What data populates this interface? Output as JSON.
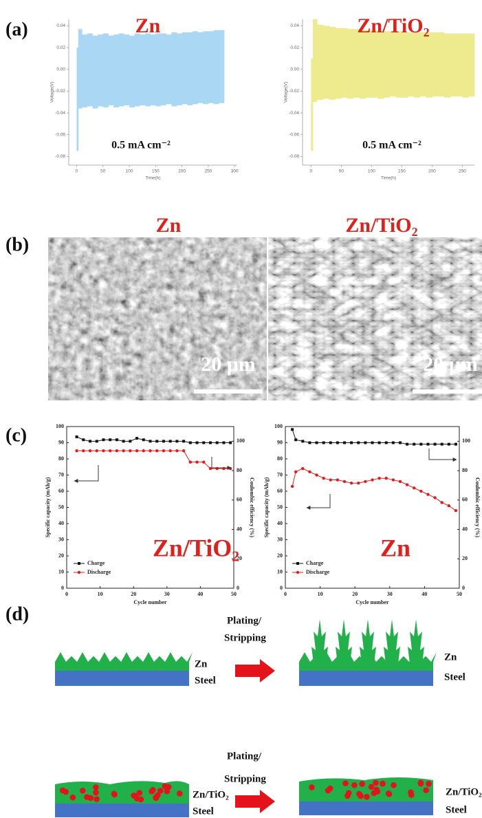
{
  "panel_labels": [
    "(a)",
    "(b)",
    "(c)",
    "(d)"
  ],
  "chart_data": [
    {
      "type": "band",
      "title": "Zn",
      "annotation": "0.5 mA cm⁻²",
      "xlabel": "Time(h)",
      "ylabel": "Voltage(V)",
      "color": "#aad8f4",
      "x": [
        0,
        3,
        10,
        20,
        30,
        40,
        50,
        60,
        70,
        80,
        90,
        100,
        110,
        120,
        130,
        140,
        150,
        160,
        170,
        180,
        190,
        200,
        210,
        220,
        230,
        240,
        250,
        260,
        270
      ],
      "upper": [
        0.02,
        0.037,
        0.032,
        0.033,
        0.031,
        0.032,
        0.033,
        0.031,
        0.032,
        0.033,
        0.032,
        0.031,
        0.033,
        0.032,
        0.033,
        0.032,
        0.033,
        0.033,
        0.032,
        0.034,
        0.033,
        0.034,
        0.034,
        0.035,
        0.034,
        0.035,
        0.035,
        0.036,
        0.036
      ],
      "lower": [
        -0.075,
        -0.036,
        -0.035,
        -0.034,
        -0.036,
        -0.034,
        -0.035,
        -0.033,
        -0.035,
        -0.034,
        -0.033,
        -0.035,
        -0.034,
        -0.033,
        -0.034,
        -0.033,
        -0.034,
        -0.033,
        -0.032,
        -0.034,
        -0.033,
        -0.032,
        -0.033,
        -0.032,
        -0.031,
        -0.032,
        -0.031,
        -0.032,
        -0.031
      ],
      "xlim": [
        -15,
        305
      ],
      "xticks": [
        0,
        50,
        100,
        150,
        200,
        250,
        300
      ],
      "ylim": [
        -0.088,
        0.046
      ],
      "yticks": [
        0.04,
        0.02,
        {
          "value": 0,
          "label": "0.00"
        },
        -0.02,
        -0.04,
        -0.06,
        -0.08
      ]
    },
    {
      "type": "band",
      "title": "Zn/TiO₂",
      "annotation": "0.5 mA cm⁻²",
      "xlabel": "Time(h)",
      "ylabel": "Voltage(V)",
      "color": "#eeea8e",
      "x": [
        0,
        3,
        10,
        20,
        30,
        40,
        50,
        60,
        70,
        80,
        90,
        100,
        110,
        120,
        130,
        140,
        150,
        160,
        170,
        180,
        190,
        200,
        210,
        220,
        230,
        240,
        250,
        260
      ],
      "upper": [
        0.01,
        0.046,
        0.041,
        0.04,
        0.039,
        0.038,
        0.038,
        0.037,
        0.037,
        0.036,
        0.036,
        0.036,
        0.035,
        0.035,
        0.035,
        0.035,
        0.034,
        0.034,
        0.034,
        0.034,
        0.034,
        0.034,
        0.034,
        0.033,
        0.033,
        0.033,
        0.033,
        0.033
      ],
      "lower": [
        -0.075,
        -0.03,
        -0.028,
        -0.027,
        -0.028,
        -0.027,
        -0.026,
        -0.027,
        -0.026,
        -0.027,
        -0.026,
        -0.026,
        -0.027,
        -0.026,
        -0.025,
        -0.026,
        -0.026,
        -0.025,
        -0.026,
        -0.025,
        -0.026,
        -0.025,
        -0.025,
        -0.026,
        -0.025,
        -0.025,
        -0.026,
        -0.025
      ],
      "xlim": [
        -14,
        270
      ],
      "xticks": [
        0,
        50,
        100,
        150,
        200,
        250
      ],
      "ylim": [
        -0.088,
        0.046
      ],
      "yticks": [
        0.04,
        0.02,
        {
          "value": 0,
          "label": "0.00"
        },
        -0.02,
        -0.04,
        -0.06,
        -0.08
      ]
    },
    {
      "type": "line",
      "title": "Zn/TiO₂",
      "xlabel": "Cycle number",
      "ylabel": "Specific capacity (mAh/g)",
      "y2label": "Coulombic efficiency (%)",
      "x": [
        3,
        5,
        7,
        9,
        11,
        13,
        15,
        17,
        19,
        21,
        23,
        25,
        27,
        29,
        31,
        33,
        35,
        37,
        39,
        41,
        43,
        45,
        47,
        49
      ],
      "series": [
        {
          "name": "Charge",
          "color": "#111111",
          "marker": "square",
          "axis": "y2",
          "values": [
            103,
            101,
            100,
            100,
            101,
            101,
            101,
            100,
            100,
            102,
            101,
            100,
            100,
            100,
            100,
            100,
            100,
            99,
            99,
            99,
            99,
            99,
            99,
            99
          ]
        },
        {
          "name": "Discharge",
          "color": "#e01b1b",
          "marker": "circle",
          "values": [
            85,
            85,
            85,
            85,
            85,
            85,
            85,
            85,
            85,
            85,
            85,
            85,
            85,
            85,
            85,
            85,
            85,
            78,
            78,
            78,
            74,
            74,
            74,
            74
          ]
        }
      ],
      "xlim": [
        0,
        50
      ],
      "xticks": [
        0,
        10,
        20,
        30,
        40,
        50
      ],
      "ylim": [
        0,
        100
      ],
      "yticks": [
        0,
        10,
        20,
        30,
        40,
        50,
        60,
        70,
        80,
        90,
        100
      ],
      "y2lim": [
        0,
        110
      ],
      "y2ticks": [
        0,
        20,
        40,
        60,
        80,
        100
      ]
    },
    {
      "type": "line",
      "title": "Zn",
      "xlabel": "Cycle number",
      "ylabel": "Specific capacity (mAh/g)",
      "y2label": "Coulombic efficiency (%)",
      "x": [
        2,
        3,
        5,
        7,
        9,
        11,
        13,
        15,
        17,
        19,
        21,
        23,
        25,
        27,
        29,
        31,
        33,
        35,
        37,
        39,
        41,
        43,
        45,
        47,
        49
      ],
      "series": [
        {
          "name": "Charge",
          "color": "#111111",
          "marker": "square",
          "axis": "y2",
          "values": [
            108,
            101,
            100,
            99,
            99,
            99,
            99,
            99,
            99,
            99,
            99,
            99,
            99,
            99,
            99,
            99,
            99,
            98,
            98,
            98,
            98,
            98,
            98,
            98,
            98
          ]
        },
        {
          "name": "Discharge",
          "color": "#e01b1b",
          "marker": "circle",
          "values": [
            63,
            72,
            74,
            72,
            70,
            68,
            67,
            67,
            66,
            65,
            65,
            66,
            67,
            68,
            68,
            67,
            66,
            64,
            62,
            60,
            58,
            56,
            53,
            51,
            48
          ]
        }
      ],
      "xlim": [
        0,
        50
      ],
      "xticks": [
        0,
        10,
        20,
        30,
        40,
        50
      ],
      "ylim": [
        0,
        100
      ],
      "yticks": [
        0,
        10,
        20,
        30,
        40,
        50,
        60,
        70,
        80,
        90,
        100
      ],
      "y2lim": [
        0,
        110
      ],
      "y2ticks": [
        0,
        20,
        40,
        60,
        80,
        100
      ]
    }
  ],
  "sem_images": [
    {
      "title": "Zn",
      "scale_bar": "20 μm"
    },
    {
      "title": "Zn/TiO₂",
      "scale_bar": "20 μm"
    }
  ],
  "diagram": {
    "rows": [
      {
        "before": [
          "Zn",
          "Steel"
        ],
        "process": [
          "Plating/",
          "Stripping"
        ],
        "after": [
          "Zn",
          "Steel"
        ]
      },
      {
        "before": [
          "Zn/TiO₂",
          "Steel"
        ],
        "process": [
          "Plating/",
          "Stripping"
        ],
        "after": [
          "Zn/TiO₂",
          "Steel"
        ]
      }
    ]
  }
}
